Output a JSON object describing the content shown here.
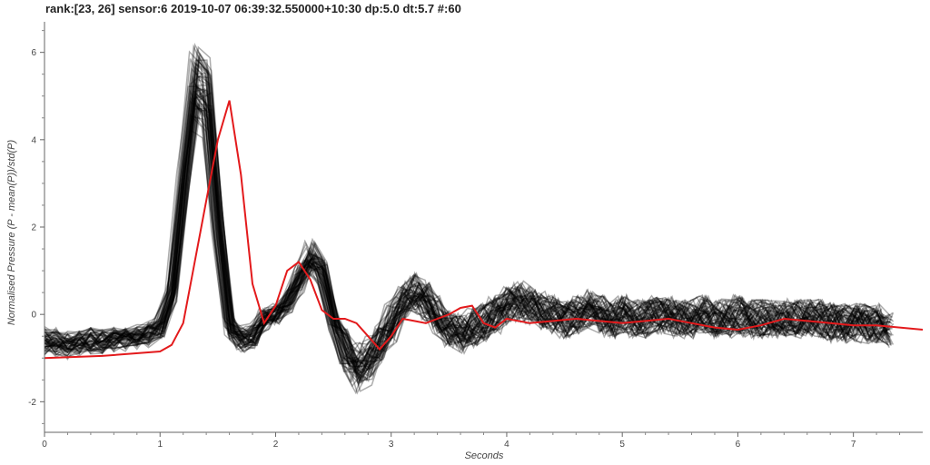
{
  "chart_data": {
    "type": "line",
    "title": "rank:[23, 26] sensor:6 2019-10-07 06:39:32.550000+10:30 dp:5.0 dt:5.7 #:60",
    "xlabel": "Seconds",
    "ylabel": "Normalised Pressure (P - mean(P))/std(P)",
    "xlim": [
      0,
      7.6
    ],
    "ylim": [
      -2.7,
      6.7
    ],
    "xticks": [
      "0",
      "1",
      "2",
      "3",
      "4",
      "5",
      "6",
      "7"
    ],
    "yticks": [
      "-2",
      "0",
      "2",
      "4",
      "6"
    ],
    "grid": false,
    "background_series_count": 60,
    "background_color": "#000000",
    "highlight_color": "#e31a1c",
    "background_template": {
      "x": [
        0,
        0.1,
        0.2,
        0.3,
        0.4,
        0.5,
        0.6,
        0.7,
        0.8,
        0.9,
        1.0,
        1.1,
        1.2,
        1.3,
        1.4,
        1.5,
        1.6,
        1.7,
        1.8,
        1.9,
        2.0,
        2.1,
        2.2,
        2.3,
        2.4,
        2.5,
        2.6,
        2.7,
        2.8,
        2.9,
        3.0,
        3.1,
        3.2,
        3.3,
        3.4,
        3.5,
        3.6,
        3.7,
        3.8,
        3.9,
        4.0,
        4.1,
        4.2,
        4.3,
        4.4,
        4.5,
        4.6,
        4.7,
        4.8,
        4.9,
        5.0,
        5.1,
        5.2,
        5.3,
        5.4,
        5.5,
        5.6,
        5.7,
        5.8,
        5.9,
        6.0,
        6.1,
        6.2,
        6.3,
        6.4,
        6.5,
        6.6,
        6.7,
        6.8,
        6.9,
        7.0,
        7.1,
        7.2,
        7.3
      ],
      "y": [
        -0.6,
        -0.65,
        -0.7,
        -0.65,
        -0.6,
        -0.62,
        -0.58,
        -0.55,
        -0.5,
        -0.45,
        -0.3,
        0.5,
        3.0,
        5.2,
        5.0,
        2.0,
        -0.3,
        -0.6,
        -0.5,
        -0.1,
        0.0,
        0.3,
        0.8,
        1.3,
        1.0,
        -0.2,
        -0.8,
        -1.2,
        -1.1,
        -0.6,
        -0.2,
        0.3,
        0.5,
        0.3,
        0.0,
        -0.3,
        -0.4,
        -0.3,
        -0.2,
        0.0,
        0.2,
        0.3,
        0.2,
        0.1,
        0.0,
        -0.1,
        0.0,
        0.1,
        0.0,
        -0.1,
        0.0,
        -0.1,
        -0.1,
        0.0,
        0.0,
        -0.1,
        -0.1,
        0.0,
        -0.1,
        -0.1,
        0.0,
        -0.1,
        -0.1,
        -0.1,
        -0.1,
        -0.1,
        -0.1,
        -0.1,
        -0.2,
        -0.2,
        -0.2,
        -0.2,
        -0.2,
        -0.3
      ]
    },
    "highlight_series": {
      "x": [
        0,
        0.5,
        1.0,
        1.1,
        1.2,
        1.3,
        1.4,
        1.5,
        1.6,
        1.7,
        1.8,
        1.9,
        2.0,
        2.1,
        2.2,
        2.3,
        2.4,
        2.5,
        2.6,
        2.7,
        2.8,
        2.9,
        3.0,
        3.1,
        3.2,
        3.3,
        3.4,
        3.5,
        3.6,
        3.7,
        3.8,
        3.9,
        4.0,
        4.2,
        4.4,
        4.6,
        4.8,
        5.0,
        5.2,
        5.4,
        5.6,
        5.8,
        6.0,
        6.2,
        6.4,
        6.6,
        6.8,
        7.0,
        7.2,
        7.4,
        7.6
      ],
      "y": [
        -1.0,
        -0.95,
        -0.85,
        -0.7,
        -0.2,
        1.2,
        2.6,
        4.0,
        4.9,
        3.2,
        0.7,
        -0.2,
        0.2,
        1.0,
        1.2,
        0.8,
        0.1,
        -0.1,
        -0.1,
        -0.2,
        -0.5,
        -0.8,
        -0.5,
        -0.1,
        -0.15,
        -0.2,
        -0.1,
        0.0,
        0.15,
        0.2,
        -0.2,
        -0.3,
        -0.1,
        -0.2,
        -0.15,
        -0.1,
        -0.15,
        -0.2,
        -0.15,
        -0.1,
        -0.2,
        -0.3,
        -0.35,
        -0.25,
        -0.1,
        -0.15,
        -0.2,
        -0.25,
        -0.25,
        -0.3,
        -0.35
      ]
    }
  }
}
